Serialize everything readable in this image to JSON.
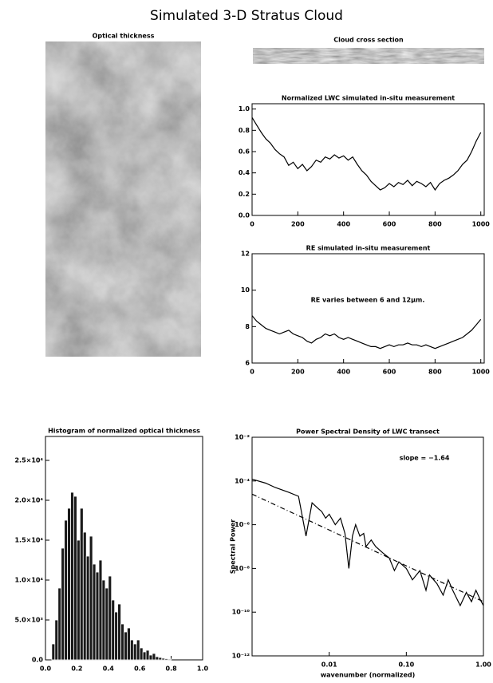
{
  "title": "Simulated 3-D Stratus Cloud",
  "chart_data": [
    {
      "type": "image",
      "title": "Optical thickness"
    },
    {
      "type": "image",
      "title": "Cloud cross section"
    },
    {
      "type": "line",
      "title": "Normalized LWC simulated in-situ measurement",
      "x": [
        0,
        20,
        40,
        60,
        80,
        100,
        120,
        140,
        160,
        180,
        200,
        220,
        240,
        260,
        280,
        300,
        320,
        340,
        360,
        380,
        400,
        420,
        440,
        460,
        480,
        500,
        520,
        540,
        560,
        580,
        600,
        620,
        640,
        660,
        680,
        700,
        720,
        740,
        760,
        780,
        800,
        820,
        840,
        860,
        880,
        900,
        920,
        940,
        960,
        980,
        1000
      ],
      "series": [
        {
          "color": "#000000",
          "values": [
            0.92,
            0.85,
            0.78,
            0.72,
            0.68,
            0.62,
            0.58,
            0.55,
            0.47,
            0.5,
            0.44,
            0.48,
            0.42,
            0.46,
            0.52,
            0.5,
            0.55,
            0.53,
            0.57,
            0.54,
            0.56,
            0.52,
            0.55,
            0.48,
            0.42,
            0.38,
            0.32,
            0.28,
            0.24,
            0.26,
            0.3,
            0.27,
            0.31,
            0.29,
            0.33,
            0.28,
            0.32,
            0.3,
            0.27,
            0.31,
            0.24,
            0.3,
            0.33,
            0.35,
            0.38,
            0.42,
            0.48,
            0.52,
            0.6,
            0.7,
            0.78
          ]
        }
      ],
      "xlim": [
        0,
        1015
      ],
      "xticks": [
        0,
        200,
        400,
        600,
        800,
        1000
      ],
      "ylim": [
        0,
        1.05
      ],
      "yticks": [
        {
          "value": 0,
          "label": "0.0"
        },
        0.2,
        0.4,
        0.6,
        0.8,
        {
          "value": 1,
          "label": "1.0"
        }
      ]
    },
    {
      "type": "line",
      "title": "RE simulated in-situ measurement",
      "annotation": "RE varies between 6 and 12μm.",
      "x": [
        0,
        20,
        40,
        60,
        80,
        100,
        120,
        140,
        160,
        180,
        200,
        220,
        240,
        260,
        280,
        300,
        320,
        340,
        360,
        380,
        400,
        420,
        440,
        460,
        480,
        500,
        520,
        540,
        560,
        580,
        600,
        620,
        640,
        660,
        680,
        700,
        720,
        740,
        760,
        780,
        800,
        820,
        840,
        860,
        880,
        900,
        920,
        940,
        960,
        980,
        1000
      ],
      "series": [
        {
          "color": "#000000",
          "values": [
            8.6,
            8.3,
            8.1,
            7.9,
            7.8,
            7.7,
            7.6,
            7.7,
            7.8,
            7.6,
            7.5,
            7.4,
            7.2,
            7.1,
            7.3,
            7.4,
            7.6,
            7.5,
            7.6,
            7.4,
            7.3,
            7.4,
            7.3,
            7.2,
            7.1,
            7.0,
            6.9,
            6.9,
            6.8,
            6.9,
            7.0,
            6.9,
            7.0,
            7.0,
            7.1,
            7.0,
            7.0,
            6.9,
            7.0,
            6.9,
            6.8,
            6.9,
            7.0,
            7.1,
            7.2,
            7.3,
            7.4,
            7.6,
            7.8,
            8.1,
            8.4
          ]
        }
      ],
      "xlim": [
        0,
        1015
      ],
      "xticks": [
        0,
        200,
        400,
        600,
        800,
        1000
      ],
      "ylim": [
        6,
        12
      ],
      "yticks": [
        6,
        8,
        10,
        12
      ]
    },
    {
      "type": "histogram",
      "title": "Histogram of normalized optical thickness",
      "color": "#1a1a1a",
      "bins": [
        0.04,
        0.06,
        0.08,
        0.1,
        0.12,
        0.14,
        0.16,
        0.18,
        0.2,
        0.22,
        0.24,
        0.26,
        0.28,
        0.3,
        0.32,
        0.34,
        0.36,
        0.38,
        0.4,
        0.42,
        0.44,
        0.46,
        0.48,
        0.5,
        0.52,
        0.54,
        0.56,
        0.58,
        0.6,
        0.62,
        0.64,
        0.66,
        0.68,
        0.7,
        0.72,
        0.74,
        0.76,
        0.78,
        0.8
      ],
      "counts": [
        2000,
        5000,
        9000,
        14000,
        17500,
        19000,
        21000,
        20500,
        15000,
        19000,
        16000,
        13000,
        15500,
        12000,
        11000,
        12500,
        10000,
        9000,
        10500,
        7500,
        6000,
        7000,
        4500,
        3500,
        4000,
        2500,
        2000,
        2500,
        1500,
        1000,
        1200,
        600,
        800,
        400,
        300,
        200,
        150,
        100
      ],
      "xlim": [
        0,
        1
      ],
      "xticks": [
        {
          "value": 0,
          "label": "0.0"
        },
        0.2,
        0.4,
        0.6,
        0.8,
        {
          "value": 1,
          "label": "1.0"
        }
      ],
      "ylim": [
        0,
        28000
      ],
      "yticks": [
        {
          "value": 0,
          "label": "0.0"
        },
        {
          "value": 5000,
          "label": "5.0×10³"
        },
        {
          "value": 10000,
          "label": "1.0×10⁴"
        },
        {
          "value": 15000,
          "label": "1.5×10⁴"
        },
        {
          "value": 20000,
          "label": "2.0×10⁴"
        },
        {
          "value": 25000,
          "label": "2.5×10⁴"
        }
      ]
    },
    {
      "type": "line",
      "title": "Power Spectral Density of LWC transect",
      "annotation": "slope = −1.64",
      "x_label": "wavenumber (normalized)",
      "y_label": "Spectral Power",
      "log_x": true,
      "log_y": true,
      "x": [
        0.001,
        0.0015,
        0.002,
        0.003,
        0.004,
        0.005,
        0.006,
        0.007,
        0.008,
        0.009,
        0.01,
        0.012,
        0.014,
        0.016,
        0.018,
        0.02,
        0.022,
        0.025,
        0.028,
        0.03,
        0.035,
        0.04,
        0.05,
        0.06,
        0.07,
        0.08,
        0.1,
        0.12,
        0.15,
        0.18,
        0.2,
        0.25,
        0.3,
        0.35,
        0.4,
        0.5,
        0.6,
        0.7,
        0.8,
        0.9,
        1.0
      ],
      "series": [
        {
          "color": "#000000",
          "values": [
            0.00012,
            8e-05,
            5e-05,
            3e-05,
            2e-05,
            3e-07,
            1e-05,
            6e-06,
            4e-06,
            2e-06,
            3e-06,
            1e-06,
            2e-06,
            4e-07,
            1e-08,
            3e-07,
            1e-06,
            3e-07,
            4e-07,
            1e-07,
            2e-07,
            1e-07,
            5e-08,
            3e-08,
            8e-09,
            2e-08,
            1e-08,
            3e-09,
            8e-09,
            1e-09,
            5e-09,
            2e-09,
            6e-10,
            3e-09,
            1e-09,
            2e-10,
            8e-10,
            3e-10,
            1e-09,
            4e-10,
            2e-10
          ]
        },
        {
          "color": "#000000",
          "dashed": true,
          "x": [
            0.001,
            1.0
          ],
          "values": [
            2.5e-05,
            3e-10
          ]
        }
      ],
      "xlim": [
        0.001,
        1
      ],
      "xticks": [
        0.01,
        {
          "value": 0.1,
          "label": "0.10"
        },
        {
          "value": 1,
          "label": "1.00"
        }
      ],
      "ylim": [
        1e-12,
        0.01
      ],
      "yticks": [
        {
          "value": 0.01,
          "label": "10⁻²"
        },
        {
          "value": 0.0001,
          "label": "10⁻⁴"
        },
        {
          "value": 1e-06,
          "label": "10⁻⁶"
        },
        {
          "value": 1e-08,
          "label": "10⁻⁸"
        },
        {
          "value": 1e-10,
          "label": "10⁻¹⁰"
        },
        {
          "value": 1e-12,
          "label": "10⁻¹²"
        }
      ]
    }
  ]
}
